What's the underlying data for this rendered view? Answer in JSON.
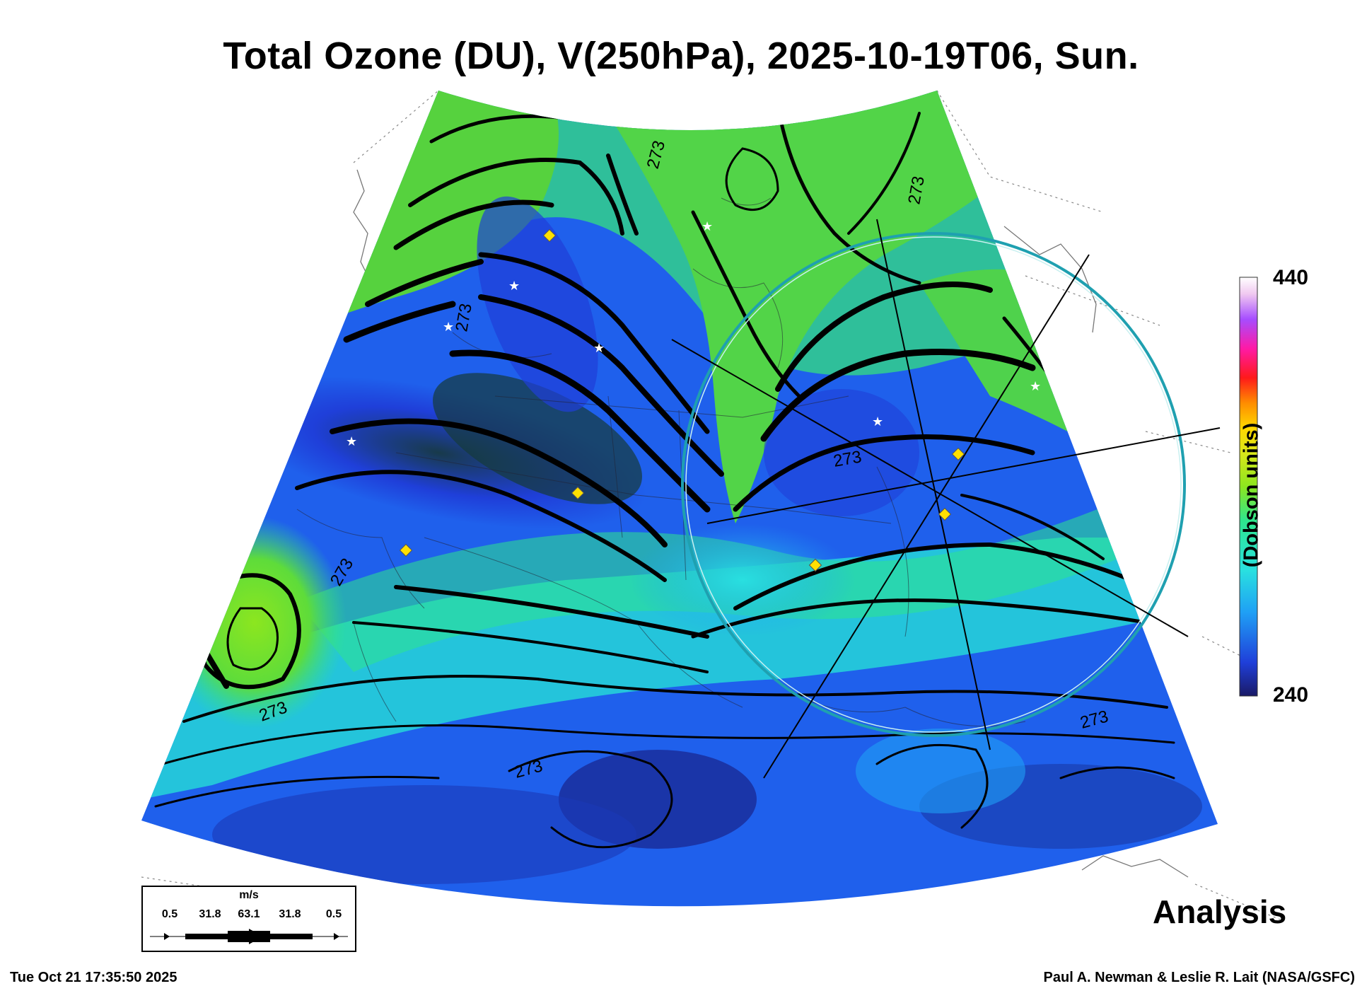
{
  "title": "Total Ozone (DU), V(250hPa), 2025-10-19T06, Sun.",
  "colorbar": {
    "max_label": "440",
    "min_label": "240",
    "units_label": "(Dobson units)",
    "stops": [
      "#1a1a66",
      "#1f3fd9",
      "#1fa0f5",
      "#29e0e0",
      "#2ee68c",
      "#8ce61f",
      "#d9e61a",
      "#ffd700",
      "#ff8c00",
      "#ff1a1a",
      "#ff1aa6",
      "#a64dff",
      "#f0c8f0",
      "#ffffff"
    ]
  },
  "contour_label": "273",
  "analysis_label": "Analysis",
  "timestamp": "Tue Oct 21 17:35:50 2025",
  "credit": "Paul A. Newman & Leslie R. Lait (NASA/GSFC)",
  "wind_legend": {
    "units": "m/s",
    "values": [
      "0.5",
      "31.8",
      "63.1",
      "31.8",
      "0.5"
    ]
  }
}
